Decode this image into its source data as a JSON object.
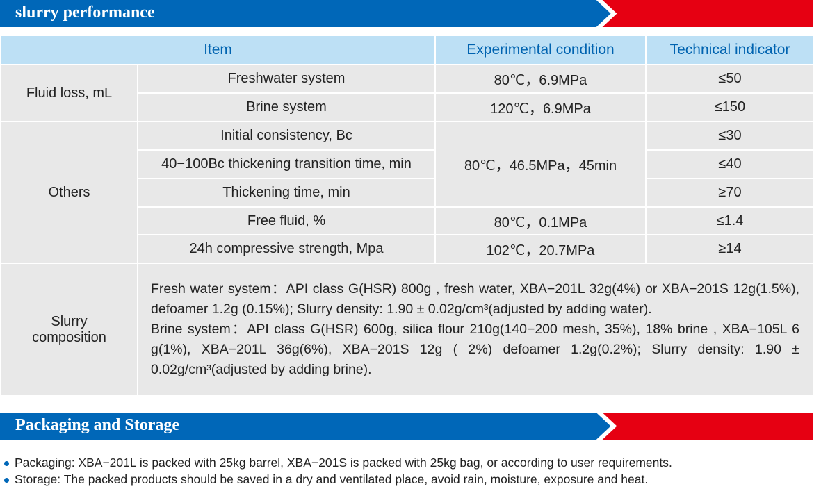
{
  "section1": {
    "title": "slurry performance"
  },
  "table": {
    "headers": [
      "Item",
      "Experimental condition",
      "Technical indicator"
    ],
    "fluid_loss": {
      "label": "Fluid loss, mL",
      "rows": [
        {
          "item": "Freshwater system",
          "condition": "80℃，6.9MPa",
          "indicator": "≤50"
        },
        {
          "item": "Brine system",
          "condition": "120℃，6.9MPa",
          "indicator": "≤150"
        }
      ]
    },
    "others": {
      "label": "Others",
      "rows": [
        {
          "item": "Initial consistency, Bc",
          "indicator": "≤30"
        },
        {
          "item": "40−100Bc thickening transition time, min",
          "condition": "80℃，46.5MPa，45min",
          "indicator": "≤40"
        },
        {
          "item": "Thickening time, min",
          "indicator": "≥70"
        },
        {
          "item": "Free fluid, %",
          "condition": "80℃，0.1MPa",
          "indicator": "≤1.4"
        },
        {
          "item": "24h compressive strength, Mpa",
          "condition": "102℃，20.7MPa",
          "indicator": "≥14"
        }
      ]
    },
    "composition": {
      "label": "Slurry composition",
      "fresh": "Fresh water system：API  class G(HSR) 800g , fresh water, XBA−201L  32g(4%) or XBA−201S 12g(1.5%), defoamer 1.2g (0.15%); Slurry density: 1.90 ± 0.02g/cm³(adjusted by adding water).",
      "brine": "Brine system：API  class G(HSR) 600g, silica flour 210g(140−200 mesh, 35%), 18% brine , XBA−105L 6 g(1%), XBA−201L 36g(6%), XBA−201S 12g ( 2%) defoamer 1.2g(0.2%); Slurry density: 1.90 ± 0.02g/cm³(adjusted by adding brine)."
    }
  },
  "section2": {
    "title": "Packaging and Storage",
    "bullets": [
      "Packaging: XBA−201L is packed with 25kg barrel, XBA−201S is packed with 25kg bag, or according to user requirements.",
      "Storage: The packed products should be saved in a dry and ventilated place, avoid rain, moisture, exposure and heat."
    ]
  },
  "colors": {
    "blue": "#0067b8",
    "red": "#e60012",
    "header_bg": "#bde0f5",
    "cell_bg": "#e8e8e8"
  }
}
